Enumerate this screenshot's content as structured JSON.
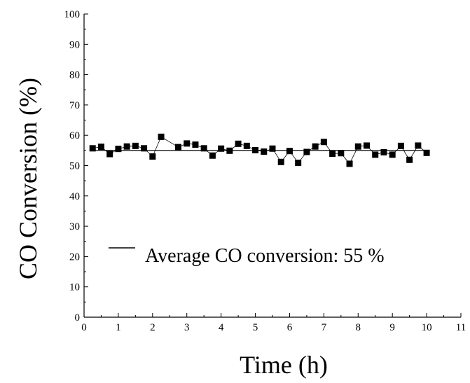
{
  "chart_data": {
    "type": "line",
    "title": "",
    "xlabel": "Time (h)",
    "ylabel": "CO Conversion (%)",
    "xlim": [
      0,
      11
    ],
    "ylim": [
      0,
      100
    ],
    "x_ticks": [
      "0",
      "1",
      "2",
      "3",
      "4",
      "5",
      "6",
      "7",
      "8",
      "9",
      "10",
      "11"
    ],
    "y_ticks": [
      "0",
      "10",
      "20",
      "30",
      "40",
      "50",
      "60",
      "70",
      "80",
      "90",
      "100"
    ],
    "grid": false,
    "legend": {
      "placement": "lower-middle",
      "label": "Average CO conversion: 55 %"
    },
    "average": 55,
    "series": [
      {
        "marker": "square",
        "color": "#000000",
        "x": [
          0.25,
          0.5,
          0.75,
          1.0,
          1.25,
          1.5,
          1.75,
          2.0,
          2.25,
          2.75,
          3.0,
          3.25,
          3.5,
          3.75,
          4.0,
          4.25,
          4.5,
          4.75,
          5.0,
          5.25,
          5.5,
          5.75,
          6.0,
          6.25,
          6.5,
          6.75,
          7.0,
          7.25,
          7.5,
          7.75,
          8.0,
          8.25,
          8.5,
          8.75,
          9.0,
          9.25,
          9.5,
          9.75,
          10.0
        ],
        "y": [
          55.7,
          56.2,
          53.8,
          55.5,
          56.3,
          56.5,
          55.7,
          53.0,
          59.5,
          56.1,
          57.3,
          56.9,
          55.7,
          53.3,
          55.6,
          54.9,
          57.2,
          56.5,
          55.1,
          54.6,
          55.6,
          51.2,
          54.8,
          50.9,
          54.5,
          56.3,
          57.8,
          53.9,
          54.1,
          50.6,
          56.3,
          56.6,
          53.6,
          54.4,
          53.6,
          56.5,
          51.9,
          56.6,
          54.2
        ]
      }
    ]
  }
}
